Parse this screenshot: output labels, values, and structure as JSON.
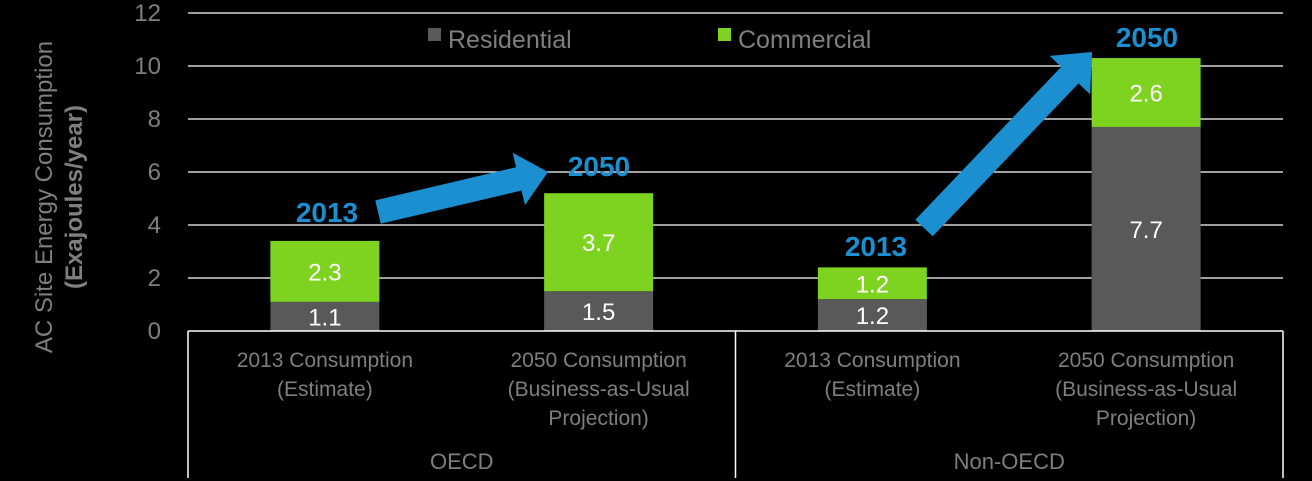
{
  "chart_data": {
    "type": "bar",
    "stacked": true,
    "ylabel_line1": "AC Site Energy Consumption",
    "ylabel_line2": "(Exajoules/year)",
    "ylim": [
      0,
      12
    ],
    "yticks": [
      "0",
      "2",
      "4",
      "6",
      "8",
      "10",
      "12"
    ],
    "grid": true,
    "legend_position": "top",
    "categories": [
      [
        "2013 Consumption",
        "(Estimate)"
      ],
      [
        "2050 Consumption",
        "(Business-as-Usual",
        "Projection)"
      ],
      [
        "2013 Consumption",
        "(Estimate)"
      ],
      [
        "2050 Consumption",
        "(Business-as-Usual",
        "Projection)"
      ]
    ],
    "groups": [
      {
        "name": "OECD",
        "span": [
          0,
          1
        ]
      },
      {
        "name": "Non-OECD",
        "span": [
          2,
          3
        ]
      }
    ],
    "series": [
      {
        "name": "Residential",
        "color": "#595959",
        "values": [
          1.1,
          1.5,
          1.2,
          7.7
        ],
        "labels": [
          "1.1",
          "1.5",
          "1.2",
          "7.7"
        ]
      },
      {
        "name": "Commercial",
        "color": "#7ed321",
        "values": [
          2.3,
          3.7,
          1.2,
          2.6
        ],
        "labels": [
          "2.3",
          "3.7",
          "1.2",
          "2.6"
        ]
      }
    ],
    "annotations": {
      "year_labels": [
        "2013",
        "2050",
        "2013",
        "2050"
      ],
      "arrow_color": "#1b8fcf"
    }
  }
}
